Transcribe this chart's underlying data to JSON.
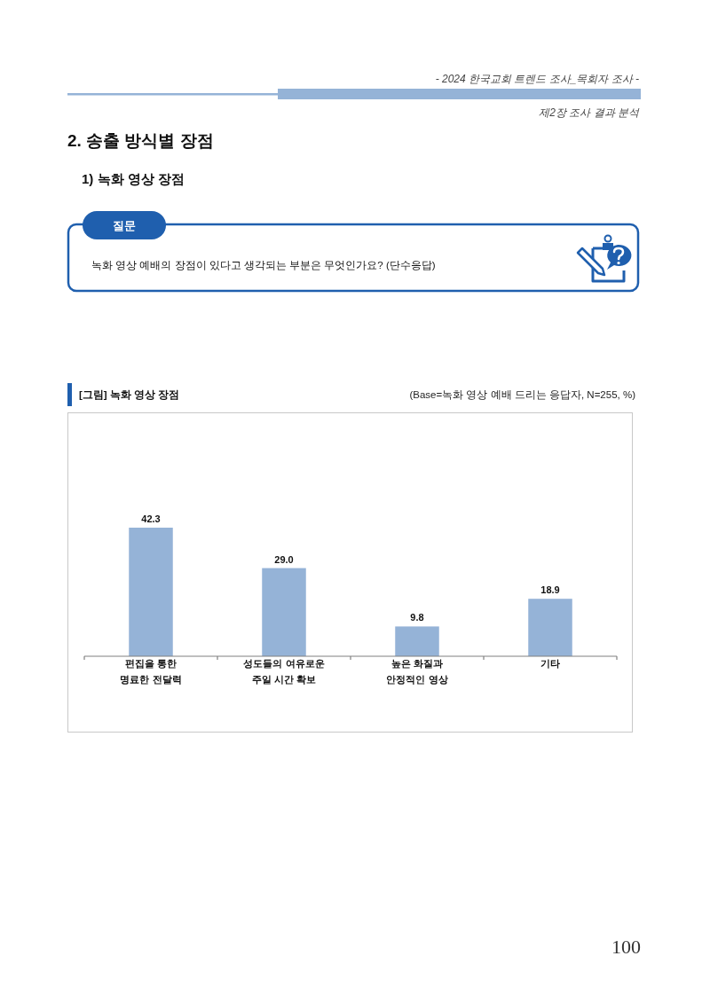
{
  "chart_data": {
    "type": "bar",
    "title": "[그림] 녹화 영상 장점",
    "subtitle": "(Base=녹화 영상 예배 드리는 응답자, N=255, %)",
    "categories": [
      "편집을 통한 명료한 전달력",
      "성도들의 여유로운 주일 시간 확보",
      "높은 화질과 안정적인 영상",
      "기타"
    ],
    "values": [
      42.3,
      29.0,
      9.8,
      18.9
    ],
    "value_labels": [
      "42.3",
      "29.0",
      "9.8",
      "18.9"
    ],
    "color": "#95b3d7",
    "annotations": [
      "- 2024 한국교회 트렌드 조사_목회자 조사 -",
      "제2장 조사 결과 분석",
      "2. 송출 방식별 장점",
      "1) 녹화 영상 장점",
      "질문",
      "녹화 영상 예배의 장점이 있다고 생각되는 부분은 무엇인가요? (단수응답)",
      "100"
    ]
  }
}
